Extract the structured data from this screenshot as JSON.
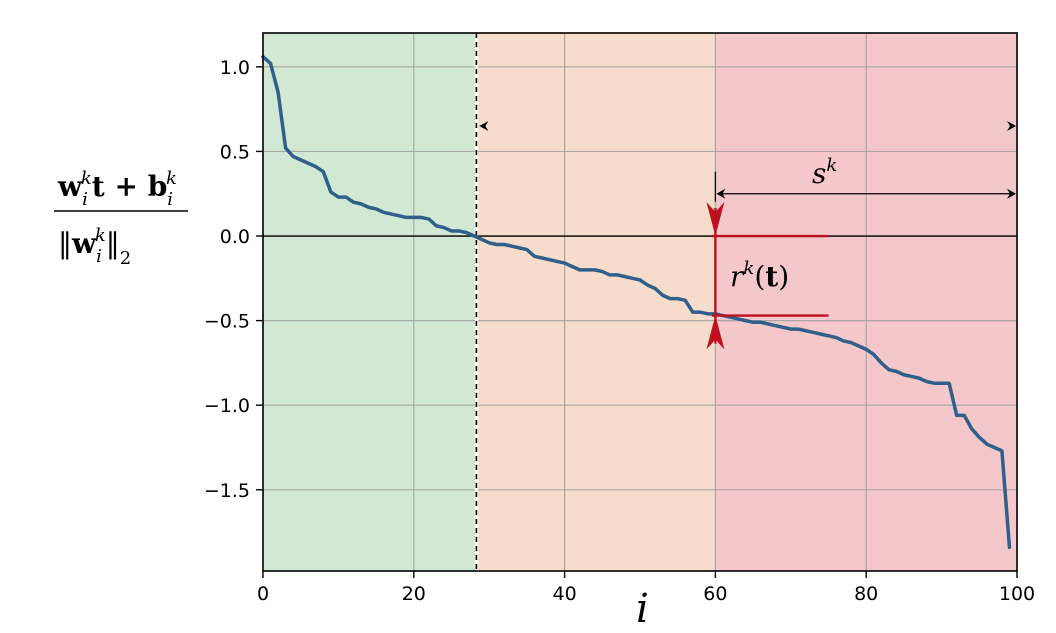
{
  "chart_data": {
    "type": "line",
    "xlabel": "i",
    "ylabel": {
      "numerator": [
        "w",
        "i",
        "k",
        "t + ",
        "b",
        "i",
        "k"
      ],
      "denominator": [
        "‖",
        "w",
        "i",
        "k",
        "‖",
        "2"
      ]
    },
    "xlim": [
      0,
      100
    ],
    "ylim": [
      -1.98,
      1.2
    ],
    "xticks": [
      0,
      20,
      40,
      60,
      80,
      100
    ],
    "xtick_labels": [
      "0",
      "20",
      "40",
      "60",
      "80",
      "100"
    ],
    "yticks": [
      1.0,
      0.5,
      0.0,
      -0.5,
      -1.0,
      -1.5
    ],
    "ytick_labels": [
      "1.0",
      "0.5",
      "0.0",
      "−0.5",
      "−1.0",
      "−1.5"
    ],
    "grid": true,
    "regions": [
      {
        "x0": 0,
        "x1": 28.3,
        "color": "#d1e8d3"
      },
      {
        "x0": 28.3,
        "x1": 60,
        "color": "#f5dccb"
      },
      {
        "x0": 60,
        "x1": 100,
        "color": "#f4c8cb"
      }
    ],
    "zero_crossing_x": 28.3,
    "series": [
      {
        "color": "#2f5f8a",
        "x": [
          0,
          1,
          2,
          3,
          4,
          5,
          6,
          7,
          8,
          9,
          10,
          11,
          12,
          13,
          14,
          15,
          16,
          17,
          18,
          19,
          20,
          21,
          22,
          23,
          24,
          25,
          26,
          27,
          28,
          29,
          30,
          31,
          32,
          33,
          34,
          35,
          36,
          37,
          38,
          39,
          40,
          41,
          42,
          43,
          44,
          45,
          46,
          47,
          48,
          49,
          50,
          51,
          52,
          53,
          54,
          55,
          56,
          57,
          58,
          59,
          60,
          61,
          62,
          63,
          64,
          65,
          66,
          67,
          68,
          69,
          70,
          71,
          72,
          73,
          74,
          75,
          76,
          77,
          78,
          79,
          80,
          81,
          82,
          83,
          84,
          85,
          86,
          87,
          88,
          89,
          90,
          91,
          92,
          93,
          94,
          95,
          96,
          97,
          98,
          99
        ],
        "y": [
          1.06,
          1.02,
          0.85,
          0.52,
          0.47,
          0.45,
          0.43,
          0.41,
          0.38,
          0.26,
          0.23,
          0.23,
          0.2,
          0.19,
          0.17,
          0.16,
          0.14,
          0.13,
          0.12,
          0.11,
          0.11,
          0.11,
          0.1,
          0.06,
          0.05,
          0.03,
          0.03,
          0.02,
          0.0,
          -0.02,
          -0.04,
          -0.05,
          -0.05,
          -0.06,
          -0.07,
          -0.08,
          -0.12,
          -0.13,
          -0.14,
          -0.15,
          -0.16,
          -0.18,
          -0.2,
          -0.2,
          -0.2,
          -0.21,
          -0.23,
          -0.23,
          -0.24,
          -0.25,
          -0.26,
          -0.29,
          -0.31,
          -0.35,
          -0.37,
          -0.37,
          -0.38,
          -0.45,
          -0.45,
          -0.46,
          -0.46,
          -0.47,
          -0.48,
          -0.49,
          -0.5,
          -0.51,
          -0.51,
          -0.52,
          -0.53,
          -0.54,
          -0.55,
          -0.55,
          -0.56,
          -0.57,
          -0.58,
          -0.59,
          -0.6,
          -0.62,
          -0.63,
          -0.65,
          -0.67,
          -0.7,
          -0.75,
          -0.79,
          -0.8,
          -0.82,
          -0.83,
          -0.84,
          -0.86,
          -0.87,
          -0.87,
          -0.87,
          -1.06,
          -1.06,
          -1.14,
          -1.19,
          -1.23,
          -1.25,
          -1.27,
          -1.84
        ]
      }
    ],
    "annotations": {
      "s_label": [
        "s",
        "k"
      ],
      "r_label": [
        "r",
        "k",
        "(",
        "t",
        ")"
      ],
      "r_bracket": {
        "x": 60.0,
        "y_top": 0.0,
        "y_bottom": -0.47,
        "x_line_start": 59.0,
        "x_line_end": 75.0,
        "color": "#c01020"
      },
      "s_bracket": {
        "x0": 60.0,
        "x1": 100.0,
        "y": 0.25
      },
      "upper_arrow": {
        "x0": 28.3,
        "x1": 100.0,
        "y": 0.65
      }
    }
  }
}
